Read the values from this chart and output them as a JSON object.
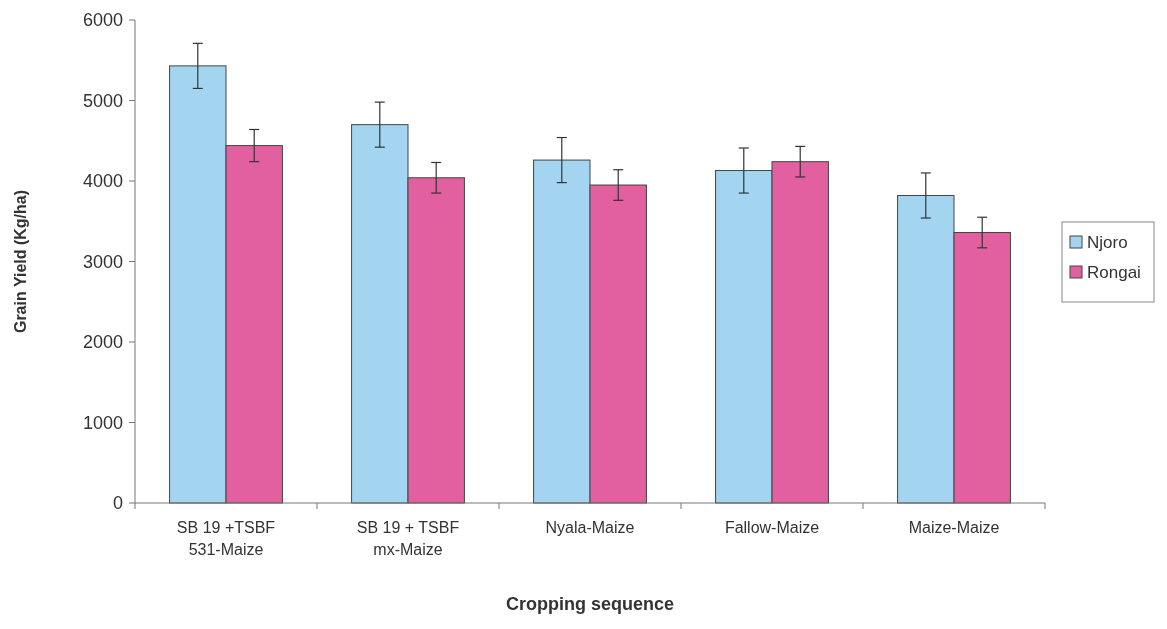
{
  "chart_data": {
    "type": "bar",
    "xlabel": "Cropping sequence",
    "ylabel": "Grain Yield (Kg/ha)",
    "categories": [
      "SB 19 +TSBF 531-Maize",
      "SB 19 + TSBF mx-Maize",
      "Nyala-Maize",
      "Fallow-Maize",
      "Maize-Maize"
    ],
    "series": [
      {
        "name": "Njoro",
        "color": "#a3d5f0",
        "values": [
          5430,
          4700,
          4260,
          4130,
          3820
        ],
        "errors": [
          280,
          280,
          280,
          280,
          280
        ]
      },
      {
        "name": "Rongai",
        "color": "#e2609f",
        "values": [
          4440,
          4040,
          3950,
          4240,
          3360
        ],
        "errors": [
          200,
          190,
          190,
          190,
          190
        ]
      }
    ],
    "ylim": [
      0,
      6000
    ],
    "yticks": [
      0,
      1000,
      2000,
      3000,
      4000,
      5000,
      6000
    ],
    "legend": "right"
  }
}
